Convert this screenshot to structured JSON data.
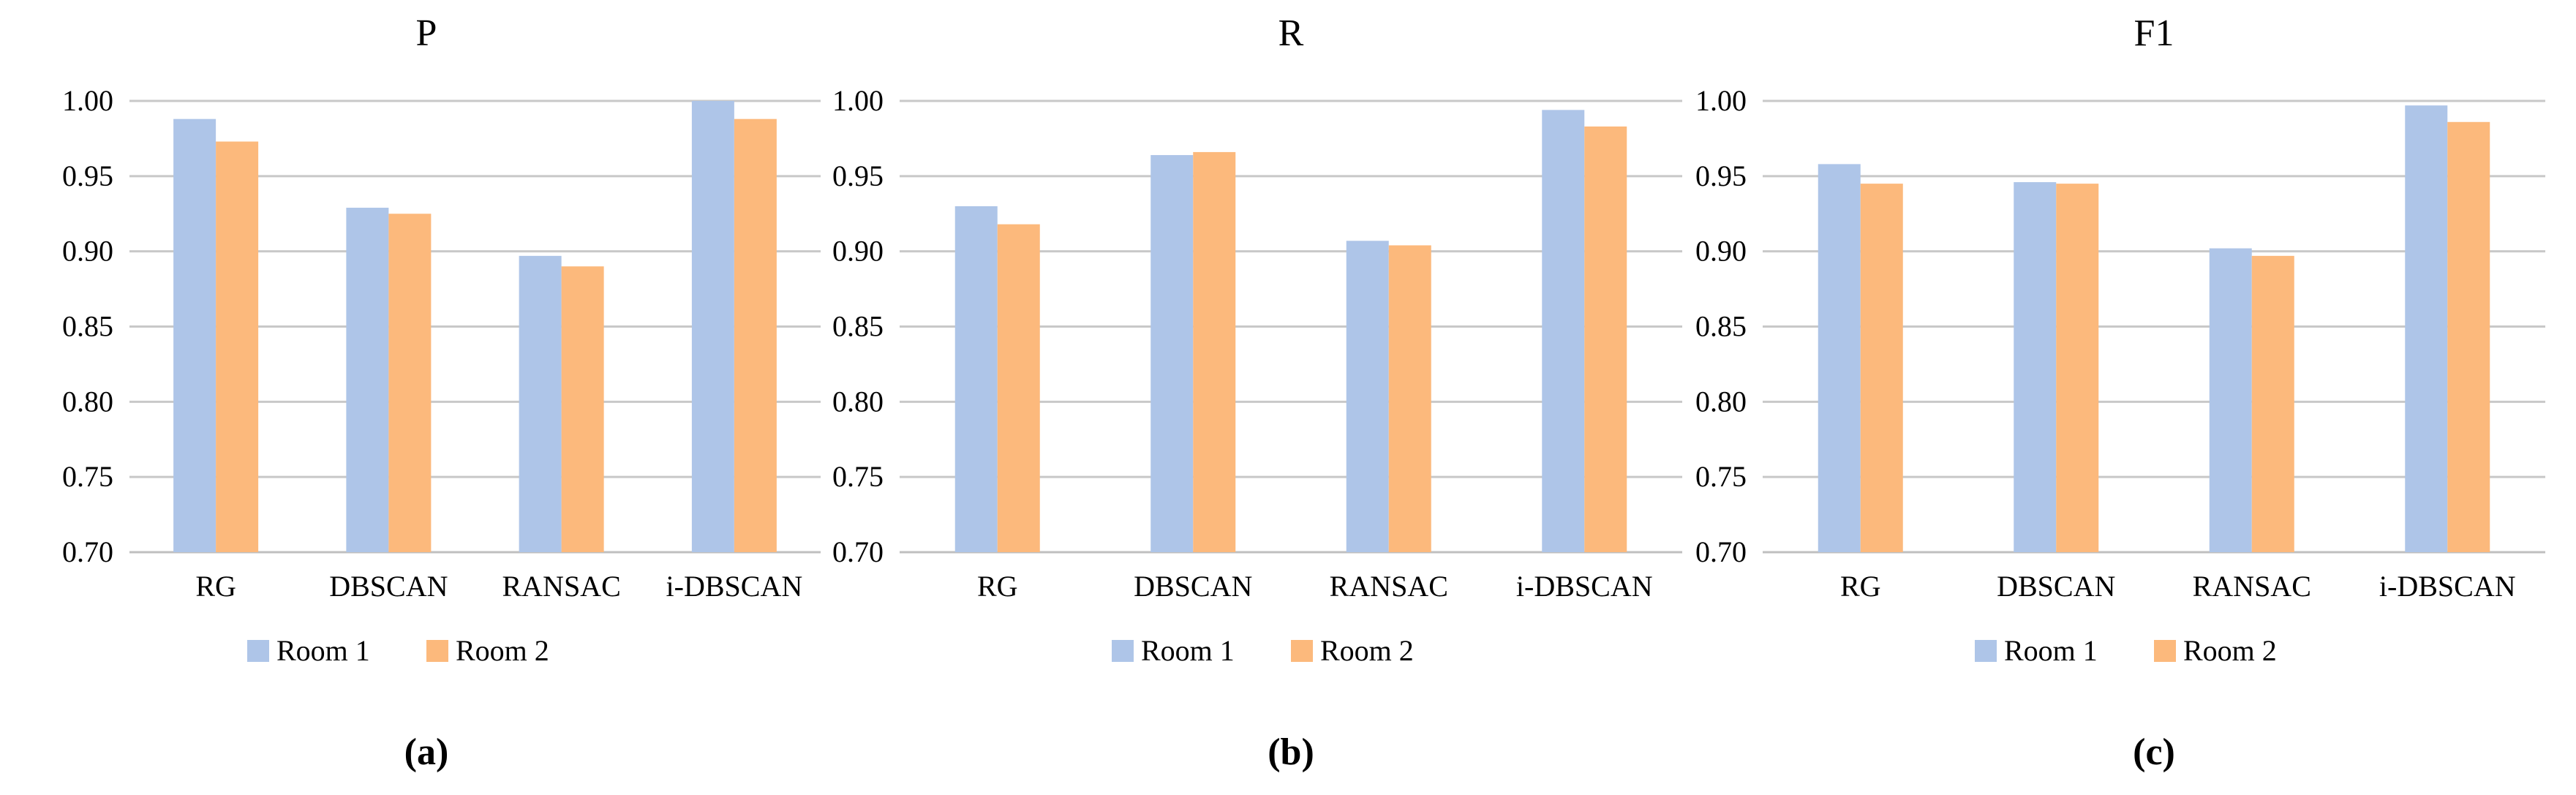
{
  "chart_data": [
    {
      "type": "bar",
      "title": "P",
      "panel_label": "(a)",
      "categories": [
        "RG",
        "DBSCAN",
        "RANSAC",
        "i-DBSCAN"
      ],
      "series": [
        {
          "name": "Room 1",
          "values": [
            0.988,
            0.929,
            0.897,
            1.0
          ]
        },
        {
          "name": "Room 2",
          "values": [
            0.973,
            0.925,
            0.89,
            0.988
          ]
        }
      ],
      "ylim": [
        0.7,
        1.0
      ],
      "yticks": [
        "0.70",
        "0.75",
        "0.80",
        "0.85",
        "0.90",
        "0.95",
        "1.00"
      ],
      "xlabel": "",
      "ylabel": "",
      "grid": true,
      "legend": "bottom"
    },
    {
      "type": "bar",
      "title": "R",
      "panel_label": "(b)",
      "categories": [
        "RG",
        "DBSCAN",
        "RANSAC",
        "i-DBSCAN"
      ],
      "series": [
        {
          "name": "Room 1",
          "values": [
            0.93,
            0.964,
            0.907,
            0.994
          ]
        },
        {
          "name": "Room 2",
          "values": [
            0.918,
            0.966,
            0.904,
            0.983
          ]
        }
      ],
      "ylim": [
        0.7,
        1.0
      ],
      "yticks": [
        "0.70",
        "0.75",
        "0.80",
        "0.85",
        "0.90",
        "0.95",
        "1.00"
      ],
      "xlabel": "",
      "ylabel": "",
      "grid": true,
      "legend": "bottom"
    },
    {
      "type": "bar",
      "title": "F1",
      "panel_label": "(c)",
      "categories": [
        "RG",
        "DBSCAN",
        "RANSAC",
        "i-DBSCAN"
      ],
      "series": [
        {
          "name": "Room 1",
          "values": [
            0.958,
            0.946,
            0.902,
            0.997
          ]
        },
        {
          "name": "Room 2",
          "values": [
            0.945,
            0.945,
            0.897,
            0.986
          ]
        }
      ],
      "ylim": [
        0.7,
        1.0
      ],
      "yticks": [
        "0.70",
        "0.75",
        "0.80",
        "0.85",
        "0.90",
        "0.95",
        "1.00"
      ],
      "xlabel": "",
      "ylabel": "",
      "grid": true,
      "legend": "bottom"
    }
  ],
  "colors": {
    "room1": "#aec5e8",
    "room2": "#fcb97c",
    "grid": "#c8c8c8",
    "axis": "#bfbfbf"
  }
}
